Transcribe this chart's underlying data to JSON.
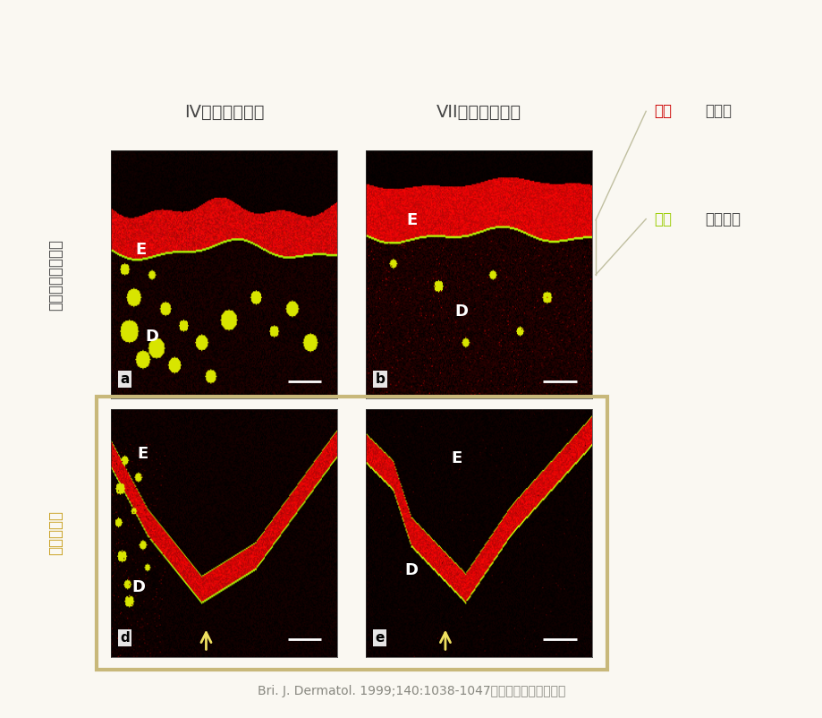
{
  "bg_color": "#faf8f2",
  "title_col1": "IV型コラーゲン",
  "title_col2": "VII型コラーゲン",
  "row1_label": "シワの少ない部分",
  "row2_label": "シワの部分",
  "legend_red_kanji": "赤色",
  "legend_red_rest": "：表皮",
  "legend_yg_kanji": "黄緑",
  "legend_yg_rest": "：基底膜",
  "citation": "Bri. J. Dermatol. 1999;140:1038-1047より引用（一部改変）",
  "panel_labels": [
    "a",
    "b",
    "d",
    "e"
  ],
  "border_color": "#c8b87a",
  "border_lw": 3,
  "arrow_color": "#f0e060",
  "bracket_color": "#c0bfa0",
  "red_color": "#cc0000",
  "yg_color": "#99cc00",
  "label_color": "#444444",
  "row2_label_color": "#c8a020"
}
